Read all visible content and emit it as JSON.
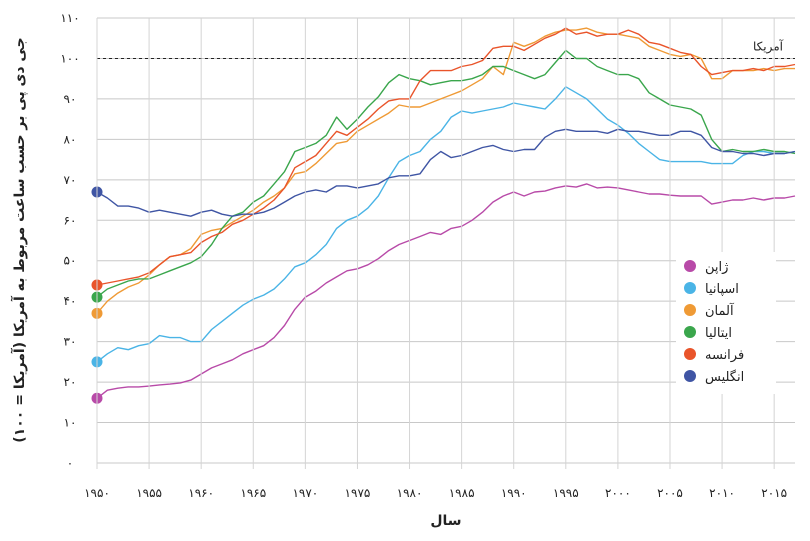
{
  "chart_data": {
    "type": "line",
    "xlabel": "سال",
    "ylabel": "جی دی پی بر حسب ساعت مربوط به آمریکا (آمریکا = ۱۰۰)",
    "xlim": [
      1950,
      2017
    ],
    "ylim": [
      0,
      110
    ],
    "x_ticks": [
      1950,
      1955,
      1960,
      1965,
      1970,
      1975,
      1980,
      1985,
      1990,
      1995,
      2000,
      2005,
      2010,
      2015
    ],
    "x_tick_labels": [
      "۱۹۵۰",
      "۱۹۵۵",
      "۱۹۶۰",
      "۱۹۶۵",
      "۱۹۷۰",
      "۱۹۷۵",
      "۱۹۸۰",
      "۱۹۸۵",
      "۱۹۹۰",
      "۱۹۹۵",
      "۲۰۰۰",
      "۲۰۰۵",
      "۲۰۱۰",
      "۲۰۱۵"
    ],
    "y_ticks": [
      0,
      10,
      20,
      30,
      40,
      50,
      60,
      70,
      80,
      90,
      100,
      110
    ],
    "y_tick_labels": [
      "۰",
      "۱۰",
      "۲۰",
      "۳۰",
      "۴۰",
      "۵۰",
      "۶۰",
      "۷۰",
      "۸۰",
      "۹۰",
      "۱۰۰",
      "۱۱۰"
    ],
    "grid": "horizontal",
    "legend_position": "right",
    "reference_line": {
      "value": 100,
      "label": "آمریکا",
      "style": "dashed"
    },
    "series": [
      {
        "name": "ژاپن",
        "color": "#b84aa8",
        "x": [
          1950,
          1951,
          1952,
          1953,
          1954,
          1955,
          1956,
          1957,
          1958,
          1959,
          1960,
          1961,
          1962,
          1963,
          1964,
          1965,
          1966,
          1967,
          1968,
          1969,
          1970,
          1971,
          1972,
          1973,
          1974,
          1975,
          1976,
          1977,
          1978,
          1979,
          1980,
          1981,
          1982,
          1983,
          1984,
          1985,
          1986,
          1987,
          1988,
          1989,
          1990,
          1991,
          1992,
          1993,
          1994,
          1995,
          1996,
          1997,
          1998,
          1999,
          2000,
          2001,
          2002,
          2003,
          2004,
          2005,
          2006,
          2007,
          2008,
          2009,
          2010,
          2011,
          2012,
          2013,
          2014,
          2015,
          2016,
          2017
        ],
        "y": [
          16,
          18,
          18.5,
          18.8,
          18.8,
          19,
          19.3,
          19.5,
          19.8,
          20.5,
          22,
          23.5,
          24.5,
          25.5,
          27,
          28,
          29,
          31,
          34,
          38,
          41,
          42.5,
          44.5,
          46,
          47.5,
          48,
          49,
          50.5,
          52.5,
          54,
          55,
          56,
          57,
          56.5,
          58,
          58.5,
          60,
          62,
          64.5,
          66,
          67,
          66,
          67,
          67.2,
          68,
          68.5,
          68.2,
          69,
          68,
          68.2,
          68,
          67.5,
          67,
          66.5,
          66.5,
          66.2,
          66,
          66,
          66,
          64,
          64.5,
          65,
          65,
          65.5,
          65,
          65.5,
          65.5,
          66
        ]
      },
      {
        "name": "اسپانیا",
        "color": "#4ab4e6",
        "x": [
          1950,
          1951,
          1952,
          1953,
          1954,
          1955,
          1956,
          1957,
          1958,
          1959,
          1960,
          1961,
          1962,
          1963,
          1964,
          1965,
          1966,
          1967,
          1968,
          1969,
          1970,
          1971,
          1972,
          1973,
          1974,
          1975,
          1976,
          1977,
          1978,
          1979,
          1980,
          1981,
          1982,
          1983,
          1984,
          1985,
          1986,
          1987,
          1988,
          1989,
          1990,
          1991,
          1992,
          1993,
          1994,
          1995,
          1996,
          1997,
          1998,
          1999,
          2000,
          2001,
          2002,
          2003,
          2004,
          2005,
          2006,
          2007,
          2008,
          2009,
          2010,
          2011,
          2012,
          2013,
          2014,
          2015,
          2016,
          2017
        ],
        "y": [
          25,
          27,
          28.5,
          28,
          29,
          29.5,
          31.5,
          31,
          31,
          30,
          30,
          33,
          35,
          37,
          39,
          40.5,
          41.5,
          43,
          45.5,
          48.5,
          49.5,
          51.5,
          54,
          58,
          60,
          61,
          63,
          66,
          70.5,
          74.5,
          76,
          77,
          80,
          82,
          85.5,
          87,
          86.5,
          87,
          87.5,
          88,
          89,
          88.5,
          88,
          87.5,
          90,
          93,
          91.5,
          90,
          87.5,
          85,
          83.5,
          81.5,
          79,
          77,
          75,
          74.5,
          74.5,
          74.5,
          74.5,
          74,
          74,
          74,
          76,
          77,
          77,
          76.5,
          76.5,
          77
        ]
      },
      {
        "name": "آلمان",
        "color": "#ef9a35",
        "x": [
          1950,
          1951,
          1952,
          1953,
          1954,
          1955,
          1956,
          1957,
          1958,
          1959,
          1960,
          1961,
          1962,
          1963,
          1964,
          1965,
          1966,
          1967,
          1968,
          1969,
          1970,
          1971,
          1972,
          1973,
          1974,
          1975,
          1976,
          1977,
          1978,
          1979,
          1980,
          1981,
          1982,
          1983,
          1984,
          1985,
          1986,
          1987,
          1988,
          1989,
          1990,
          1991,
          1992,
          1993,
          1994,
          1995,
          1996,
          1997,
          1998,
          1999,
          2000,
          2001,
          2002,
          2003,
          2004,
          2005,
          2006,
          2007,
          2008,
          2009,
          2010,
          2011,
          2012,
          2013,
          2014,
          2015,
          2016,
          2017
        ],
        "y": [
          37,
          40,
          42,
          43.5,
          44.5,
          46.5,
          49,
          51,
          51.5,
          53,
          56.5,
          57.5,
          58,
          59.5,
          61,
          62.5,
          64.5,
          66,
          68,
          71.5,
          72,
          74,
          76.5,
          79,
          79.5,
          82,
          83.5,
          85,
          86.5,
          88.5,
          88,
          88,
          89,
          90,
          91,
          92,
          93.5,
          95,
          98,
          96,
          104,
          103,
          104,
          105.5,
          106.5,
          107,
          107,
          107.5,
          106.5,
          106,
          106,
          105.5,
          105,
          103,
          102,
          101,
          100.5,
          101,
          100,
          95,
          95,
          97,
          97,
          97,
          97.5,
          97,
          97.5,
          97.5
        ]
      },
      {
        "name": "ایتالیا",
        "color": "#3aa64c",
        "x": [
          1950,
          1951,
          1952,
          1953,
          1954,
          1955,
          1956,
          1957,
          1958,
          1959,
          1960,
          1961,
          1962,
          1963,
          1964,
          1965,
          1966,
          1967,
          1968,
          1969,
          1970,
          1971,
          1972,
          1973,
          1974,
          1975,
          1976,
          1977,
          1978,
          1979,
          1980,
          1981,
          1982,
          1983,
          1984,
          1985,
          1986,
          1987,
          1988,
          1989,
          1990,
          1991,
          1992,
          1993,
          1994,
          1995,
          1996,
          1997,
          1998,
          1999,
          2000,
          2001,
          2002,
          2003,
          2004,
          2005,
          2006,
          2007,
          2008,
          2009,
          2010,
          2011,
          2012,
          2013,
          2014,
          2015,
          2016,
          2017
        ],
        "y": [
          41,
          43,
          44,
          45,
          45.5,
          45.5,
          46.5,
          47.5,
          48.5,
          49.5,
          51,
          54,
          58,
          61,
          62,
          64.5,
          66,
          69,
          72,
          77,
          78,
          79,
          81,
          85.5,
          82.5,
          85,
          88,
          90.5,
          94,
          96,
          95,
          94.5,
          93.5,
          94,
          94.5,
          94.5,
          95,
          96,
          98,
          98,
          97,
          96,
          95,
          96,
          99,
          102,
          100,
          100,
          98,
          97,
          96,
          96,
          95,
          91.5,
          90,
          88.5,
          88,
          87.5,
          86,
          80,
          77,
          77.5,
          77,
          77,
          77.5,
          77,
          77,
          76.5
        ]
      },
      {
        "name": "فرانسه",
        "color": "#e9542a",
        "x": [
          1950,
          1951,
          1952,
          1953,
          1954,
          1955,
          1956,
          1957,
          1958,
          1959,
          1960,
          1961,
          1962,
          1963,
          1964,
          1965,
          1966,
          1967,
          1968,
          1969,
          1970,
          1971,
          1972,
          1973,
          1974,
          1975,
          1976,
          1977,
          1978,
          1979,
          1980,
          1981,
          1982,
          1983,
          1984,
          1985,
          1986,
          1987,
          1988,
          1989,
          1990,
          1991,
          1992,
          1993,
          1994,
          1995,
          1996,
          1997,
          1998,
          1999,
          2000,
          2001,
          2002,
          2003,
          2004,
          2005,
          2006,
          2007,
          2008,
          2009,
          2010,
          2011,
          2012,
          2013,
          2014,
          2015,
          2016,
          2017
        ],
        "y": [
          44,
          44.5,
          45,
          45.5,
          46,
          47,
          49,
          51,
          51.5,
          52,
          54.5,
          56,
          57,
          59,
          60,
          61.5,
          63,
          65,
          68,
          73,
          74.5,
          76,
          79,
          82,
          81,
          83,
          85,
          87.5,
          89.5,
          90,
          90,
          94.5,
          97,
          97,
          97,
          98,
          98.5,
          99.5,
          102.5,
          103,
          103,
          102,
          103.5,
          105,
          106,
          107.5,
          106,
          106.5,
          105.5,
          106,
          106,
          107,
          106,
          104,
          103.5,
          102.5,
          101.5,
          101,
          98,
          96,
          96.5,
          97,
          97,
          97.5,
          97,
          98,
          98,
          98.5
        ]
      },
      {
        "name": "انگلیس",
        "color": "#3f55a4",
        "x": [
          1950,
          1951,
          1952,
          1953,
          1954,
          1955,
          1956,
          1957,
          1958,
          1959,
          1960,
          1961,
          1962,
          1963,
          1964,
          1965,
          1966,
          1967,
          1968,
          1969,
          1970,
          1971,
          1972,
          1973,
          1974,
          1975,
          1976,
          1977,
          1978,
          1979,
          1980,
          1981,
          1982,
          1983,
          1984,
          1985,
          1986,
          1987,
          1988,
          1989,
          1990,
          1991,
          1992,
          1993,
          1994,
          1995,
          1996,
          1997,
          1998,
          1999,
          2000,
          2001,
          2002,
          2003,
          2004,
          2005,
          2006,
          2007,
          2008,
          2009,
          2010,
          2011,
          2012,
          2013,
          2014,
          2015,
          2016,
          2017
        ],
        "y": [
          67,
          65.5,
          63.5,
          63.5,
          63,
          62,
          62.5,
          62,
          61.5,
          61,
          62,
          62.5,
          61.5,
          61,
          61.5,
          61.5,
          62,
          63,
          64.5,
          66,
          67,
          67.5,
          67,
          68.5,
          68.5,
          68,
          68.5,
          69,
          70.5,
          71,
          71,
          71.5,
          75,
          77,
          75.5,
          76,
          77,
          78,
          78.5,
          77.5,
          77,
          77.5,
          77.5,
          80.5,
          82,
          82.5,
          82,
          82,
          82,
          81.5,
          82.5,
          82,
          82,
          81.5,
          81,
          81,
          82,
          82,
          81,
          78,
          77,
          77,
          76.5,
          76.5,
          76,
          76.5,
          76.5,
          77
        ]
      }
    ]
  }
}
